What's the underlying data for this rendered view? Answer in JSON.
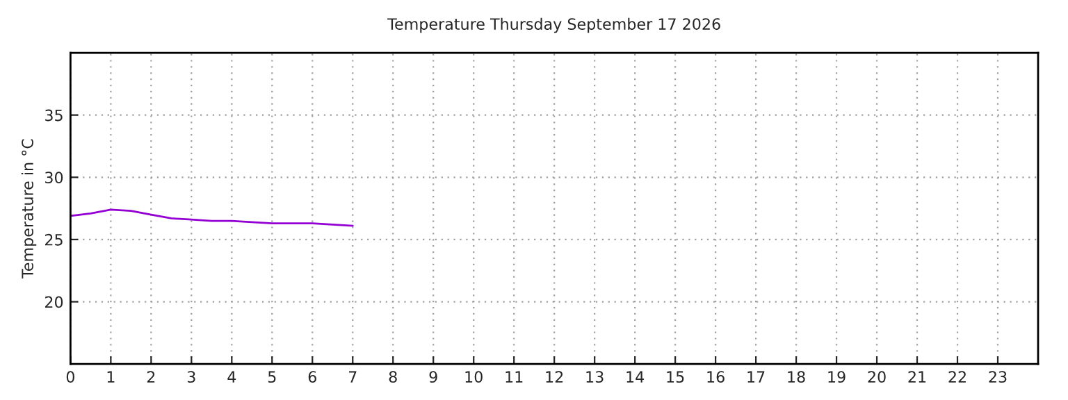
{
  "chart_data": {
    "type": "line",
    "title": "Temperature Thursday September 17 2026",
    "ylabel": "Temperature in °C",
    "x": [
      0,
      0.5,
      1,
      1.5,
      2,
      2.5,
      3,
      3.5,
      4,
      4.5,
      5,
      5.5,
      6,
      6.5,
      7
    ],
    "series": [
      {
        "color": "#9400d3",
        "values": [
          26.9,
          27.1,
          27.4,
          27.3,
          27.0,
          26.7,
          26.6,
          26.5,
          26.5,
          26.4,
          26.3,
          26.3,
          26.3,
          26.2,
          26.1
        ]
      }
    ],
    "xlim": [
      0,
      24
    ],
    "xticks": [
      0,
      1,
      2,
      3,
      4,
      5,
      6,
      7,
      8,
      9,
      10,
      11,
      12,
      13,
      14,
      15,
      16,
      17,
      18,
      19,
      20,
      21,
      22,
      23
    ],
    "ylim": [
      15,
      40
    ],
    "yticks": [
      20,
      25,
      30,
      35
    ],
    "grid": true,
    "line_style": "solid"
  }
}
